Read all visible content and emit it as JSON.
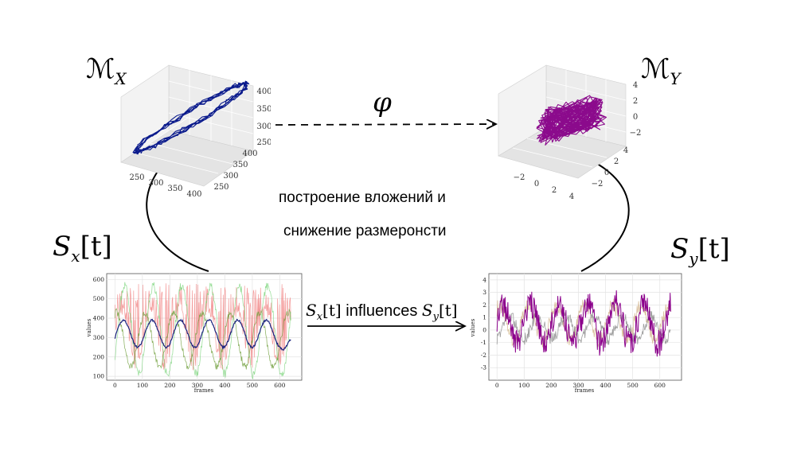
{
  "manifold_x": {
    "symbol": "ℳ",
    "sub": "X"
  },
  "manifold_y": {
    "symbol": "ℳ",
    "sub": "Y"
  },
  "phi": "φ",
  "series_x": {
    "name": "S",
    "sub": "x",
    "arg": "[t]"
  },
  "series_y": {
    "name": "S",
    "sub": "y",
    "arg": "[t]"
  },
  "embedding_text": {
    "line1": "построение вложений и",
    "line2": "снижение размеронсти"
  },
  "influence": {
    "s": "S",
    "x": "x",
    "t1": "[t]",
    "word": " influences ",
    "s2": "S",
    "y": "y",
    "t2": "[t]"
  },
  "chart_data": [
    {
      "type": "line",
      "name": "manifold-x-3d",
      "x_ticks": [
        "250",
        "300",
        "350",
        "400"
      ],
      "y_ticks": [
        "250",
        "300",
        "350",
        "400"
      ],
      "z_ticks": [
        "250",
        "300",
        "350",
        "400"
      ],
      "color": "#0a1a8c"
    },
    {
      "type": "line",
      "name": "manifold-y-3d",
      "x_ticks": [
        "−2",
        "0",
        "2",
        "4"
      ],
      "y_ticks": [
        "−2",
        "0",
        "2",
        "4"
      ],
      "z_ticks": [
        "−2",
        "0",
        "2",
        "4"
      ],
      "color": "#8b0a8c"
    },
    {
      "type": "line",
      "name": "series-x-plot",
      "xlabel": "frames",
      "ylabel": "values",
      "x_ticks": [
        0,
        100,
        200,
        300,
        400,
        500,
        600
      ],
      "y_ticks": [
        100,
        200,
        300,
        400,
        500,
        600
      ],
      "xlim": [
        -30,
        680
      ],
      "ylim": [
        80,
        630
      ],
      "series_colors": [
        "#f08080",
        "#7fd67f",
        "#6e9e3a",
        "#1a237e"
      ]
    },
    {
      "type": "line",
      "name": "series-y-plot",
      "xlabel": "frames",
      "ylabel": "values",
      "x_ticks": [
        0,
        100,
        200,
        300,
        400,
        500,
        600
      ],
      "y_ticks": [
        -3,
        -2,
        -1,
        0,
        1,
        2,
        3,
        4
      ],
      "xlim": [
        -30,
        680
      ],
      "ylim": [
        -4,
        4.5
      ],
      "series_colors": [
        "#d2b48c",
        "#8c8c8c",
        "#8b008b"
      ]
    }
  ]
}
